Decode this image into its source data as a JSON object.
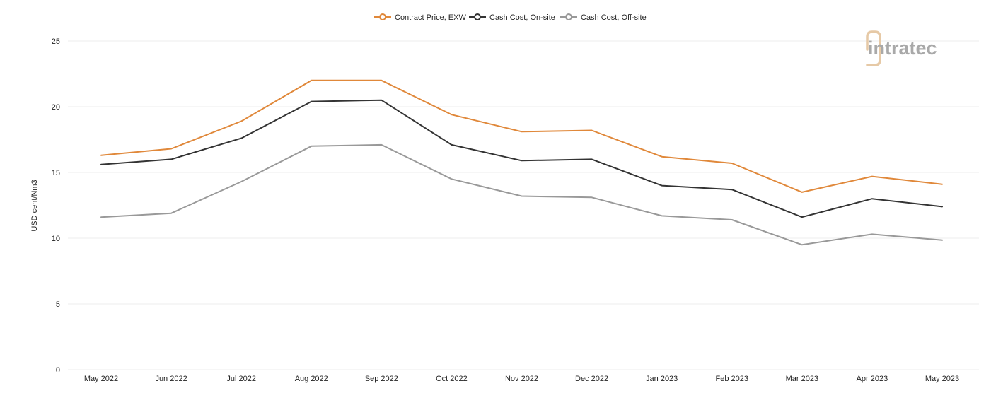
{
  "colors": {
    "contract": "#e0883a",
    "onsite": "#333333",
    "offsite": "#999999",
    "grid": "#ececec",
    "logo": "#a9a9a9",
    "logo_accent": "#e6c9a6"
  },
  "logo": {
    "text": "intratec"
  },
  "chart_data": {
    "type": "line",
    "ylabel": "USD cent/Nm3",
    "xlabel": "",
    "title": "",
    "ylim": [
      0,
      25
    ],
    "yticks": [
      0,
      5,
      10,
      15,
      20,
      25
    ],
    "grid": true,
    "legend_position": "top-center",
    "categories": [
      "May 2022",
      "Jun 2022",
      "Jul 2022",
      "Aug 2022",
      "Sep 2022",
      "Oct 2022",
      "Nov 2022",
      "Dec 2022",
      "Jan 2023",
      "Feb 2023",
      "Mar 2023",
      "Apr 2023",
      "May 2023"
    ],
    "series": [
      {
        "name": "Contract Price, EXW",
        "color_key": "contract",
        "values": [
          16.3,
          16.8,
          18.9,
          22.0,
          22.0,
          19.4,
          18.1,
          18.2,
          16.2,
          15.7,
          13.5,
          14.7,
          14.1
        ]
      },
      {
        "name": "Cash Cost, On-site",
        "color_key": "onsite",
        "values": [
          15.6,
          16.0,
          17.6,
          20.4,
          20.5,
          17.1,
          15.9,
          16.0,
          14.0,
          13.7,
          11.6,
          13.0,
          12.4
        ]
      },
      {
        "name": "Cash Cost, Off-site",
        "color_key": "offsite",
        "values": [
          11.6,
          11.9,
          14.3,
          17.0,
          17.1,
          14.5,
          13.2,
          13.1,
          11.7,
          11.4,
          9.5,
          10.3,
          9.85
        ]
      }
    ]
  }
}
